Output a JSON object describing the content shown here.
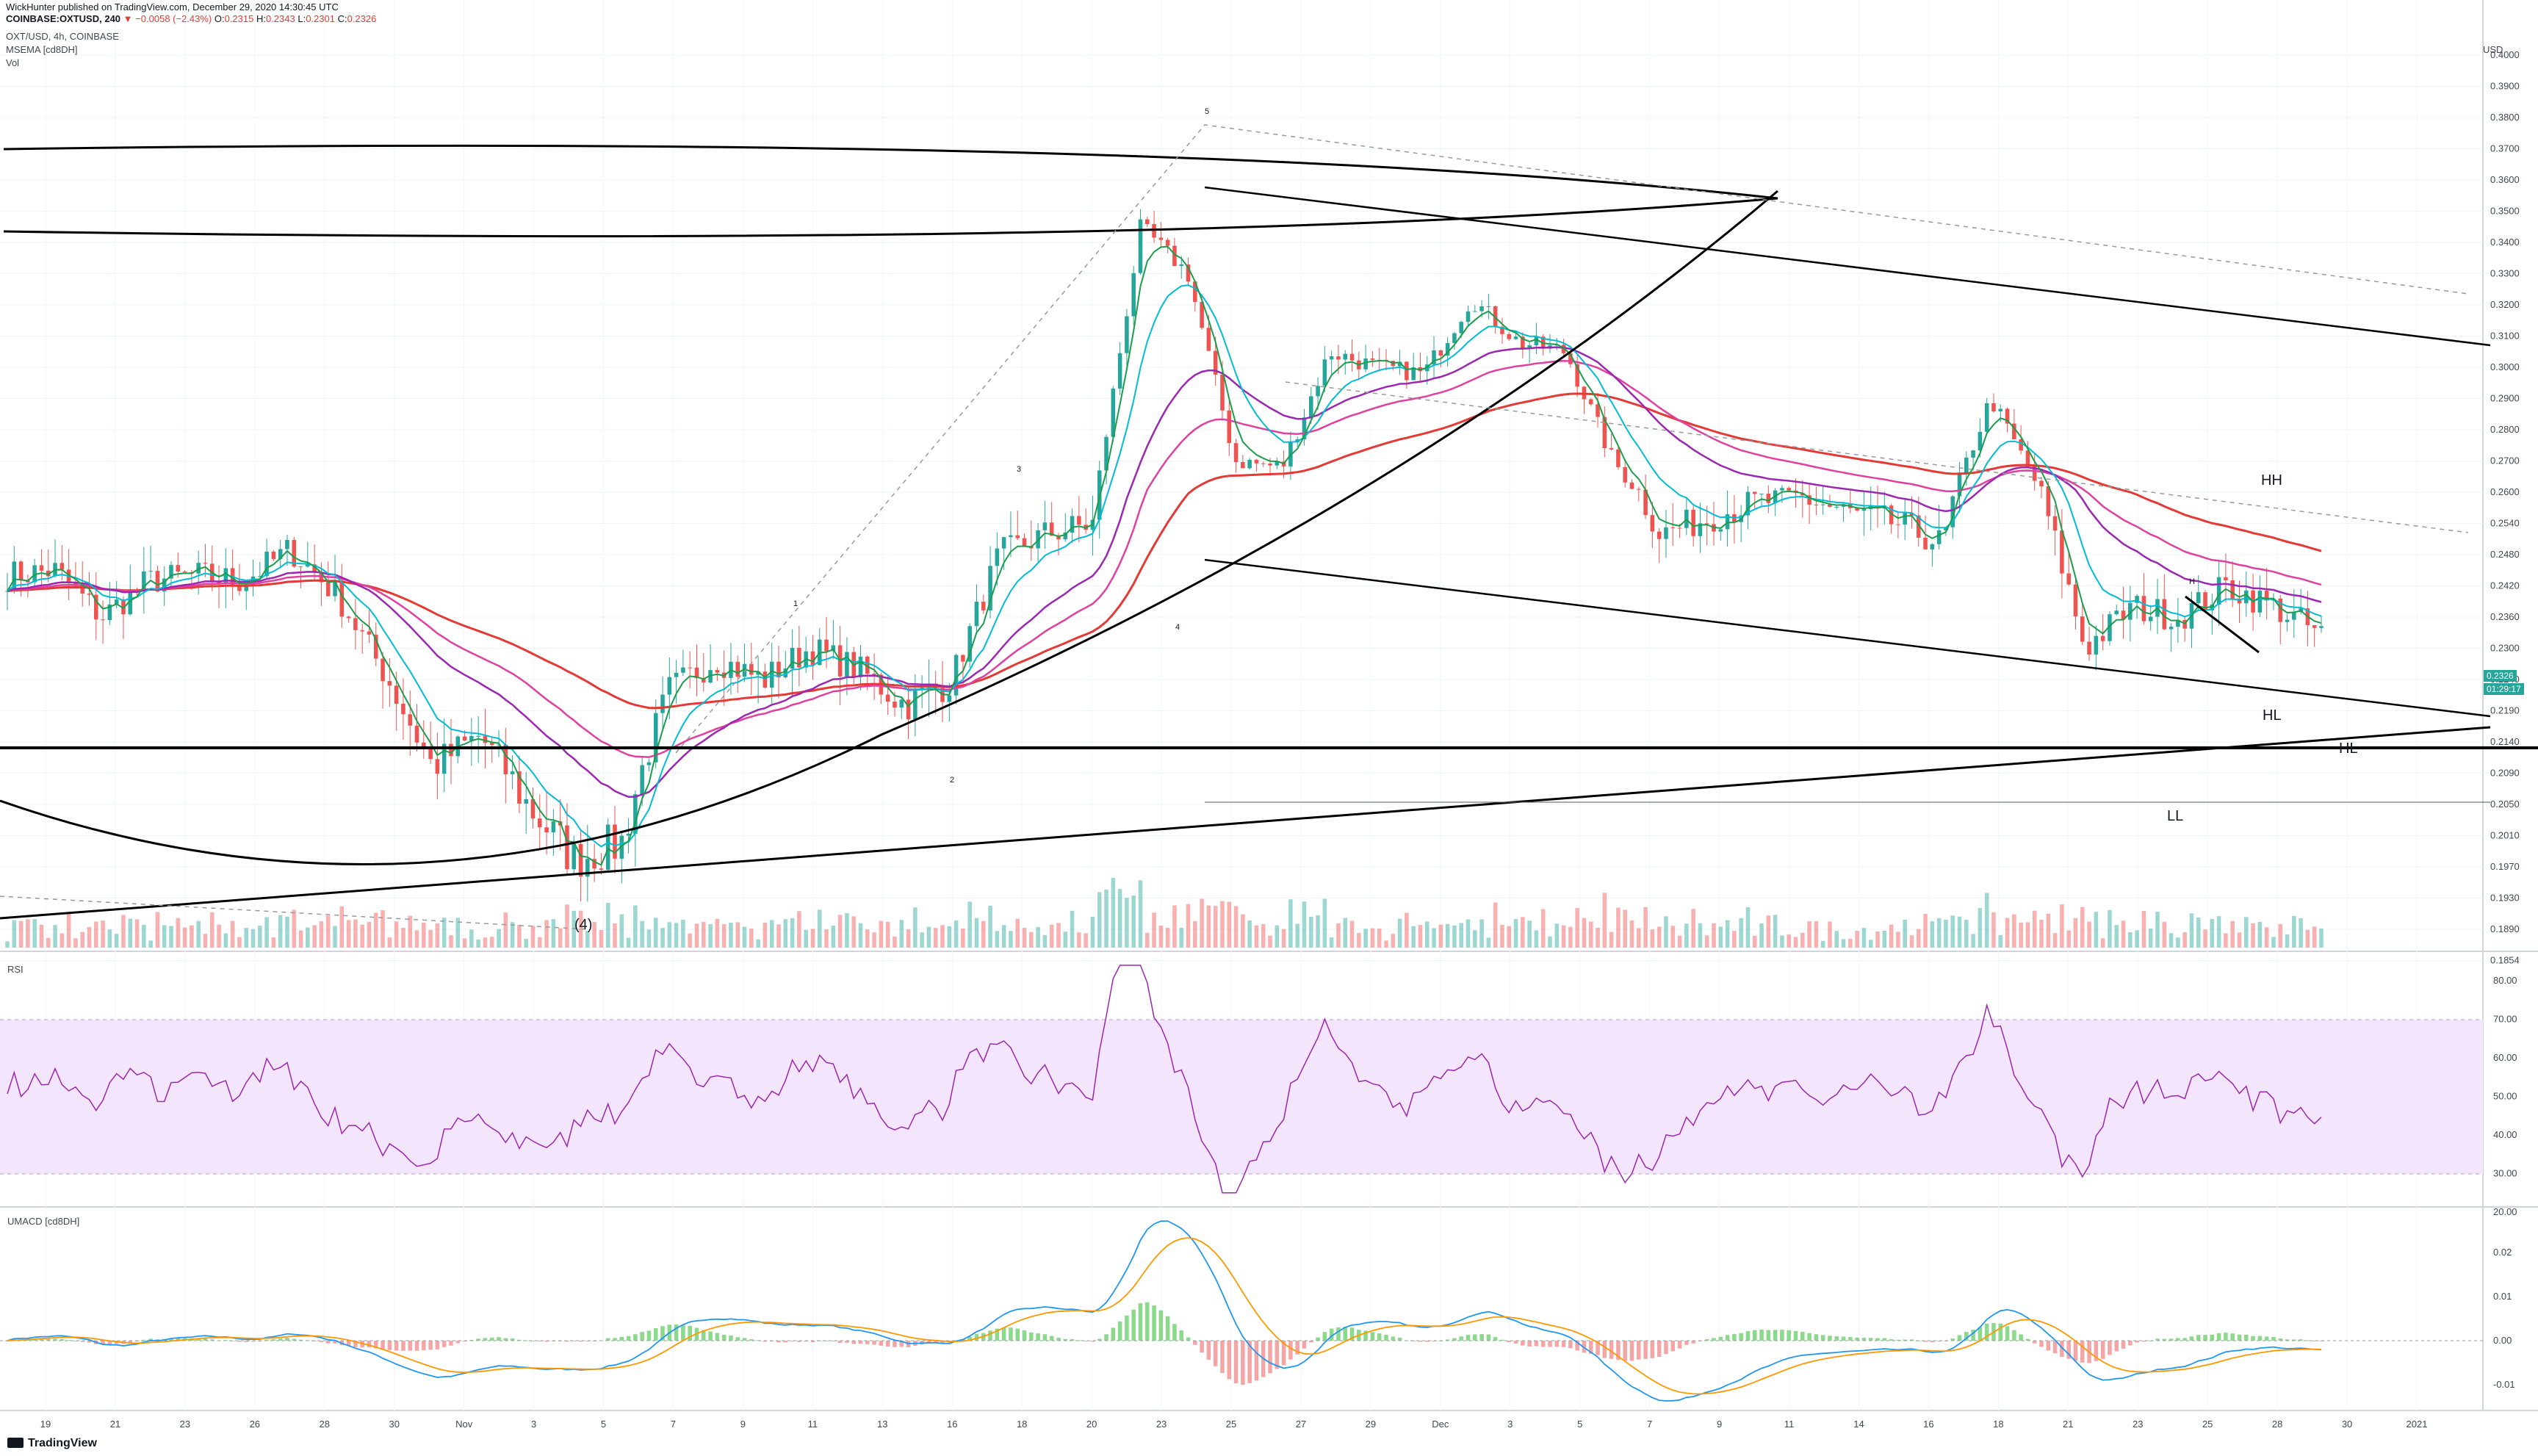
{
  "header": {
    "publisher_line": "WickHunter published on TradingView.com, December 29, 2020 14:30:45 UTC",
    "symbol_line_prefix": "COINBASE:OXTUSD, 240",
    "change": "▼ −0.0058 (−2.43%)",
    "ohlc": {
      "O": "0.2315",
      "H": "0.2343",
      "L": "0.2301",
      "C": "0.2326"
    },
    "pair_line": "OXT/USD, 4h, COINBASE",
    "indicator1": "MSEMA [cd8DH]",
    "indicator2": "Vol"
  },
  "panels": {
    "rsi_title": "RSI",
    "macd_title": "UMACD [cd8DH]"
  },
  "price_badge": {
    "price": "0.2326",
    "timer": "01:29:17"
  },
  "currency": "USD",
  "brand": "TradingView",
  "annotations": [
    "5",
    "3",
    "1",
    "4",
    "2",
    "(4)",
    "HH",
    "H",
    "HL",
    "HL",
    "LL"
  ],
  "colors": {
    "up": "#26a69a",
    "down": "#ef5350",
    "ma_red": "#e53935",
    "ma_magenta": "#e040a0",
    "ma_purple": "#9c27b0",
    "ma_blue": "#00bcd4",
    "ma_green": "#1b9e4b",
    "rsi": "#9c27b0",
    "rsi_band": "#f3e5fb",
    "macd_blue": "#2196f3",
    "macd_orange": "#ff9800"
  },
  "chart_data": {
    "type": "line",
    "title": "OXT/USD, 4h, COINBASE",
    "price_axis_ticks": [
      "0.4000",
      "0.3900",
      "0.3800",
      "0.3700",
      "0.3600",
      "0.3500",
      "0.3400",
      "0.3300",
      "0.3200",
      "0.3100",
      "0.3000",
      "0.2900",
      "0.2800",
      "0.2700",
      "0.2600",
      "0.2540",
      "0.2480",
      "0.2420",
      "0.2360",
      "0.2300",
      "0.2240",
      "0.2190",
      "0.2140",
      "0.2090",
      "0.2050",
      "0.2010",
      "0.1970",
      "0.1930",
      "0.1890",
      "0.1854"
    ],
    "rsi_axis_ticks": [
      "80.00",
      "70.00",
      "60.00",
      "50.00",
      "40.00",
      "30.00",
      "20.00"
    ],
    "macd_axis_ticks": [
      "0.02",
      "0.01",
      "0.00",
      "-0.01"
    ],
    "x_tick_labels": [
      "19",
      "21",
      "23",
      "26",
      "28",
      "30",
      "Nov",
      "3",
      "5",
      "7",
      "9",
      "11",
      "13",
      "16",
      "18",
      "20",
      "23",
      "25",
      "27",
      "29",
      "Dec",
      "3",
      "5",
      "7",
      "9",
      "11",
      "14",
      "16",
      "18",
      "21",
      "23",
      "25",
      "28",
      "30",
      "2021"
    ],
    "price_close_series": [
      {
        "x": 0,
        "y": 0.244
      },
      {
        "x": 2,
        "y": 0.245
      },
      {
        "x": 4,
        "y": 0.236
      },
      {
        "x": 6,
        "y": 0.243
      },
      {
        "x": 8,
        "y": 0.244
      },
      {
        "x": 10,
        "y": 0.243
      },
      {
        "x": 12,
        "y": 0.249
      },
      {
        "x": 14,
        "y": 0.24
      },
      {
        "x": 16,
        "y": 0.225
      },
      {
        "x": 18,
        "y": 0.21
      },
      {
        "x": 20,
        "y": 0.215
      },
      {
        "x": 22,
        "y": 0.205
      },
      {
        "x": 24,
        "y": 0.198
      },
      {
        "x": 26,
        "y": 0.2
      },
      {
        "x": 28,
        "y": 0.222
      },
      {
        "x": 30,
        "y": 0.228
      },
      {
        "x": 32,
        "y": 0.224
      },
      {
        "x": 34,
        "y": 0.23
      },
      {
        "x": 36,
        "y": 0.226
      },
      {
        "x": 38,
        "y": 0.22
      },
      {
        "x": 40,
        "y": 0.224
      },
      {
        "x": 42,
        "y": 0.248
      },
      {
        "x": 44,
        "y": 0.252
      },
      {
        "x": 46,
        "y": 0.254
      },
      {
        "x": 48,
        "y": 0.345
      },
      {
        "x": 50,
        "y": 0.33
      },
      {
        "x": 52,
        "y": 0.27
      },
      {
        "x": 54,
        "y": 0.268
      },
      {
        "x": 56,
        "y": 0.305
      },
      {
        "x": 58,
        "y": 0.3
      },
      {
        "x": 60,
        "y": 0.298
      },
      {
        "x": 62,
        "y": 0.322
      },
      {
        "x": 64,
        "y": 0.308
      },
      {
        "x": 66,
        "y": 0.305
      },
      {
        "x": 68,
        "y": 0.27
      },
      {
        "x": 70,
        "y": 0.252
      },
      {
        "x": 72,
        "y": 0.255
      },
      {
        "x": 74,
        "y": 0.258
      },
      {
        "x": 76,
        "y": 0.259
      },
      {
        "x": 78,
        "y": 0.256
      },
      {
        "x": 80,
        "y": 0.254
      },
      {
        "x": 82,
        "y": 0.25
      },
      {
        "x": 84,
        "y": 0.29
      },
      {
        "x": 86,
        "y": 0.262
      },
      {
        "x": 88,
        "y": 0.23
      },
      {
        "x": 90,
        "y": 0.238
      },
      {
        "x": 92,
        "y": 0.236
      },
      {
        "x": 94,
        "y": 0.242
      },
      {
        "x": 96,
        "y": 0.238
      },
      {
        "x": 98,
        "y": 0.2326
      }
    ]
  }
}
